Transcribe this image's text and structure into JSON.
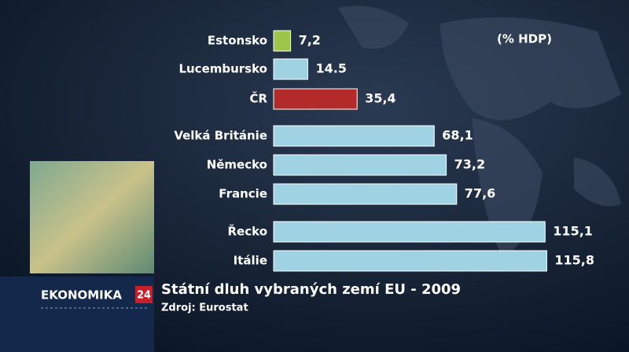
{
  "chart_data": {
    "type": "hbar",
    "title": "Státní dluh vybraných zemí EU - 2009",
    "subtitle": "Zdroj: Eurostat",
    "unit_label": "(% HDP)",
    "categories": [
      "Estonsko",
      "Lucembursko",
      "ČR",
      "Velká Británie",
      "Německo",
      "Francie",
      "Řecko",
      "Itálie"
    ],
    "values": [
      7.2,
      14.5,
      35.4,
      68.1,
      73.2,
      77.6,
      115.1,
      115.8
    ],
    "value_labels": [
      "7,2",
      "14.5",
      "35,4",
      "68,1",
      "73,2",
      "77,6",
      "115,1",
      "115,8"
    ],
    "colors": [
      "#9cc64a",
      "#9fd3e3",
      "#b32a2a",
      "#9fd3e3",
      "#9fd3e3",
      "#9fd3e3",
      "#9fd3e3",
      "#9fd3e3"
    ]
  },
  "branding": {
    "program": "EKONOMIKA",
    "logo": "24"
  }
}
